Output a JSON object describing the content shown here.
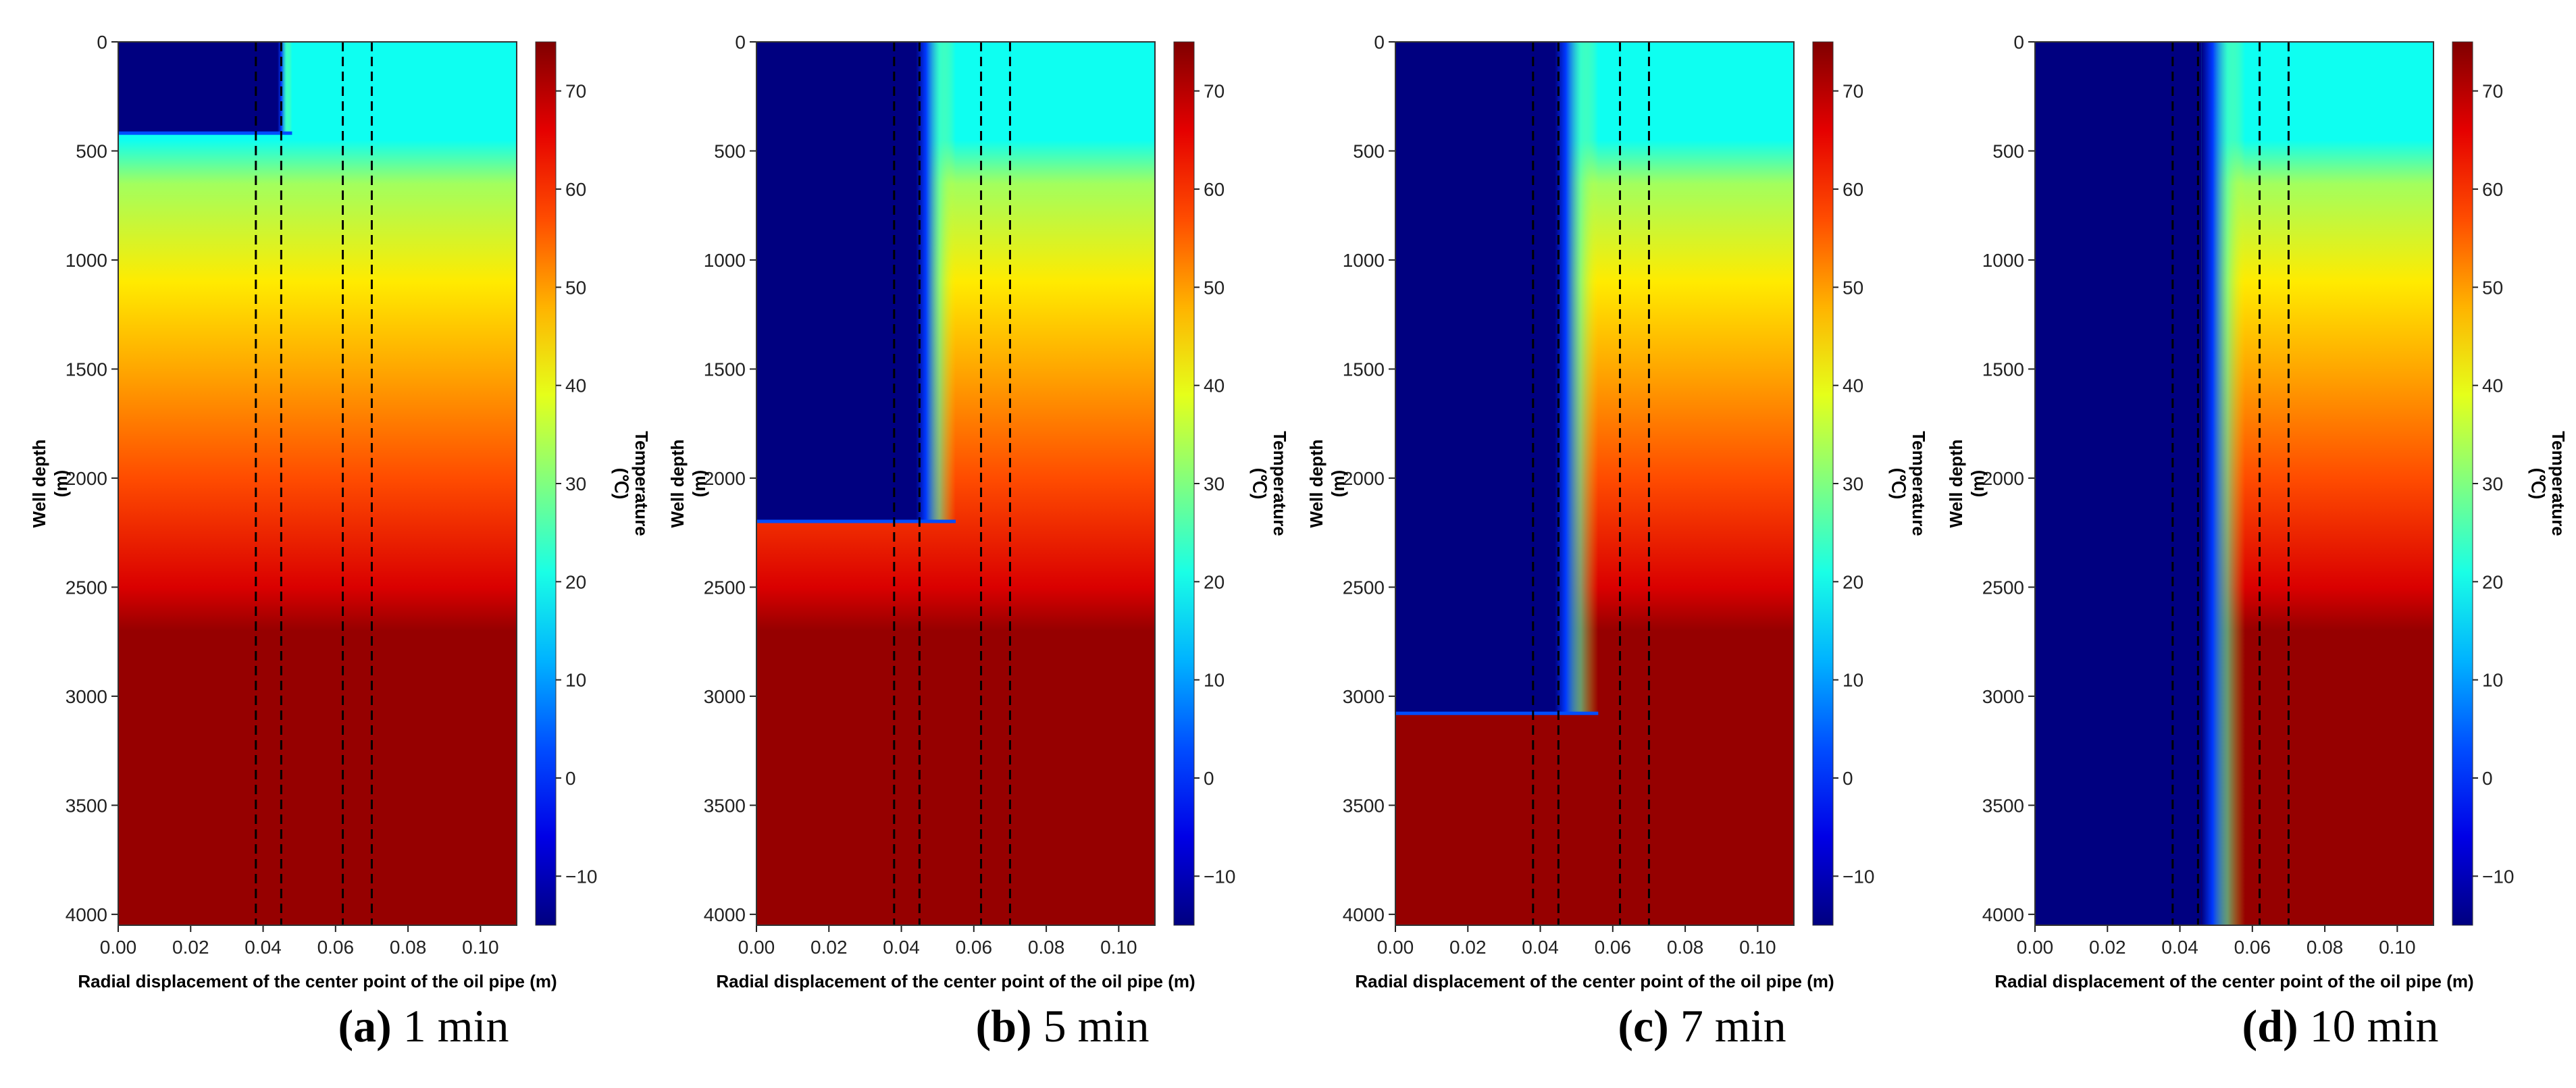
{
  "figure": {
    "shared_axes": {
      "xlabel": "Radial displacement of the center point of the oil pipe  (m)",
      "ylabel_line1": "Well depth",
      "ylabel_line2": "(m)",
      "colorbar_label_line1": "Temperature",
      "colorbar_label_line2": "(℃)",
      "x_ticks": [
        "0.00",
        "0.02",
        "0.04",
        "0.06",
        "0.08",
        "0.10"
      ],
      "y_ticks": [
        "0",
        "500",
        "1000",
        "1500",
        "2000",
        "2500",
        "3000",
        "3500",
        "4000"
      ],
      "colorbar_ticks": [
        "−10",
        "0",
        "10",
        "20",
        "30",
        "40",
        "50",
        "60",
        "70"
      ]
    },
    "captions": [
      {
        "letter": "(a)",
        "rest": " 1 min"
      },
      {
        "letter": "(b)",
        "rest": " 5 min"
      },
      {
        "letter": "(c)",
        "rest": " 7 min"
      },
      {
        "letter": "(d)",
        "rest": " 10 min"
      }
    ]
  },
  "chart_data": [
    {
      "type": "heatmap",
      "panel": "a",
      "time_min": 1,
      "xlabel": "Radial displacement of the center point of the oil pipe  (m)",
      "ylabel": "Well depth (m)",
      "colorbar_label": "Temperature (℃)",
      "xlim": [
        0,
        0.11
      ],
      "ylim": [
        4050,
        0
      ],
      "clim": [
        -15,
        75
      ],
      "dashed_lines_x": [
        0.038,
        0.045,
        0.062,
        0.07
      ],
      "cold_front_depth": 420,
      "cold_inner_x": 0.044,
      "transition_outer_x": 0.048,
      "cold_temperature": -15,
      "geothermal_profile": {
        "depth": [
          0,
          450,
          650,
          1100,
          1500,
          2000,
          2500,
          2700,
          4050
        ],
        "temperature": [
          20,
          20,
          33,
          43,
          49,
          57,
          67,
          73,
          73
        ]
      }
    },
    {
      "type": "heatmap",
      "panel": "b",
      "time_min": 5,
      "xlabel": "Radial displacement of the center point of the oil pipe  (m)",
      "ylabel": "Well depth (m)",
      "colorbar_label": "Temperature (℃)",
      "xlim": [
        0,
        0.11
      ],
      "ylim": [
        4050,
        0
      ],
      "clim": [
        -15,
        75
      ],
      "dashed_lines_x": [
        0.038,
        0.045,
        0.062,
        0.07
      ],
      "cold_front_depth": 2200,
      "cold_inner_x": 0.044,
      "transition_outer_x": 0.055,
      "cold_temperature": -15,
      "geothermal_profile": {
        "depth": [
          0,
          450,
          650,
          1100,
          1500,
          2000,
          2500,
          2700,
          4050
        ],
        "temperature": [
          20,
          20,
          33,
          43,
          49,
          57,
          67,
          73,
          73
        ]
      }
    },
    {
      "type": "heatmap",
      "panel": "c",
      "time_min": 7,
      "xlabel": "Radial displacement of the center point of the oil pipe  (m)",
      "ylabel": "Well depth (m)",
      "colorbar_label": "Temperature (℃)",
      "xlim": [
        0,
        0.11
      ],
      "ylim": [
        4050,
        0
      ],
      "clim": [
        -15,
        75
      ],
      "dashed_lines_x": [
        0.038,
        0.045,
        0.062,
        0.07
      ],
      "cold_front_depth": 3080,
      "cold_inner_x": 0.044,
      "transition_outer_x": 0.056,
      "cold_temperature": -15,
      "geothermal_profile": {
        "depth": [
          0,
          450,
          650,
          1100,
          1500,
          2000,
          2500,
          2700,
          4050
        ],
        "temperature": [
          20,
          20,
          33,
          43,
          49,
          57,
          67,
          73,
          73
        ]
      }
    },
    {
      "type": "heatmap",
      "panel": "d",
      "time_min": 10,
      "xlabel": "Radial displacement of the center point of the oil pipe  (m)",
      "ylabel": "Well depth (m)",
      "colorbar_label": "Temperature (℃)",
      "xlim": [
        0,
        0.11
      ],
      "ylim": [
        4050,
        0
      ],
      "clim": [
        -15,
        75
      ],
      "dashed_lines_x": [
        0.038,
        0.045,
        0.062,
        0.07
      ],
      "cold_front_depth": 4050,
      "cold_inner_x": 0.046,
      "transition_outer_x": 0.058,
      "cold_temperature": -15,
      "geothermal_profile": {
        "depth": [
          0,
          450,
          650,
          1100,
          1500,
          2000,
          2500,
          2700,
          4050
        ],
        "temperature": [
          20,
          20,
          33,
          43,
          49,
          57,
          67,
          73,
          73
        ]
      }
    }
  ]
}
